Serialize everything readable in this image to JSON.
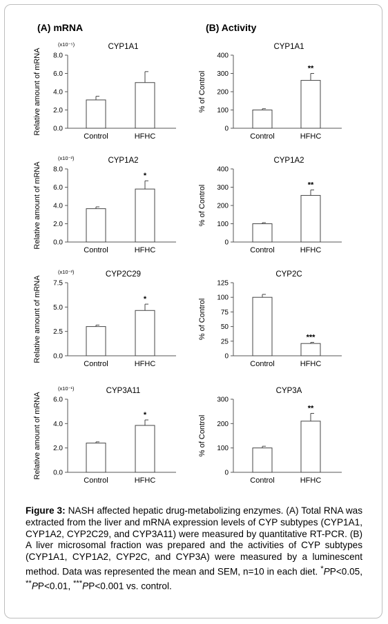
{
  "columns": {
    "a_label": "(A) mRNA",
    "b_label": "(B) Activity"
  },
  "chart_data": [
    {
      "type": "bar",
      "panel": "A",
      "title": "CYP1A1",
      "categories": [
        "Control",
        "HFHC"
      ],
      "values": [
        3.1,
        5.0
      ],
      "errors": [
        0.4,
        1.2
      ],
      "ylabel": "Relative amount of mRNA",
      "multiplier": "(x10⁻⁵)",
      "ylim": [
        0,
        8
      ],
      "yticks": [
        "0.0",
        "2.0",
        "4.0",
        "6.0",
        "8.0"
      ],
      "significance": [
        "",
        ""
      ]
    },
    {
      "type": "bar",
      "panel": "A",
      "title": "CYP1A2",
      "categories": [
        "Control",
        "HFHC"
      ],
      "values": [
        3.65,
        5.8
      ],
      "errors": [
        0.2,
        0.9
      ],
      "ylabel": "Relative amount of mRNA",
      "multiplier": "(x10⁻²)",
      "ylim": [
        0,
        8
      ],
      "yticks": [
        "0.0",
        "2.0",
        "4.0",
        "6.0",
        "8.0"
      ],
      "significance": [
        "",
        "*"
      ]
    },
    {
      "type": "bar",
      "panel": "A",
      "title": "CYP2C29",
      "categories": [
        "Control",
        "HFHC"
      ],
      "values": [
        3.0,
        4.65
      ],
      "errors": [
        0.15,
        0.65
      ],
      "ylabel": "Relative amount of mRNA",
      "multiplier": "(x10⁻²)",
      "ylim": [
        0,
        7.5
      ],
      "yticks": [
        "0.0",
        "2.5",
        "5.0",
        "7.5"
      ],
      "significance": [
        "",
        "*"
      ]
    },
    {
      "type": "bar",
      "panel": "A",
      "title": "CYP3A11",
      "categories": [
        "Control",
        "HFHC"
      ],
      "values": [
        2.4,
        3.85
      ],
      "errors": [
        0.1,
        0.45
      ],
      "ylabel": "Relative amount of mRNA",
      "multiplier": "(x10⁻¹)",
      "ylim": [
        0,
        6
      ],
      "yticks": [
        "0.0",
        "2.0",
        "4.0",
        "6.0"
      ],
      "significance": [
        "",
        "*"
      ]
    },
    {
      "type": "bar",
      "panel": "B",
      "title": "CYP1A1",
      "categories": [
        "Control",
        "HFHC"
      ],
      "values": [
        100,
        262
      ],
      "errors": [
        7,
        38
      ],
      "ylabel": "% of Control",
      "multiplier": "",
      "ylim": [
        0,
        400
      ],
      "yticks": [
        "0",
        "100",
        "200",
        "300",
        "400"
      ],
      "significance": [
        "",
        "**"
      ]
    },
    {
      "type": "bar",
      "panel": "B",
      "title": "CYP1A2",
      "categories": [
        "Control",
        "HFHC"
      ],
      "values": [
        100,
        255
      ],
      "errors": [
        6,
        30
      ],
      "ylabel": "% of Control",
      "multiplier": "",
      "ylim": [
        0,
        400
      ],
      "yticks": [
        "0",
        "100",
        "200",
        "300",
        "400"
      ],
      "significance": [
        "",
        "**"
      ]
    },
    {
      "type": "bar",
      "panel": "B",
      "title": "CYP2C",
      "categories": [
        "Control",
        "HFHC"
      ],
      "values": [
        100,
        21
      ],
      "errors": [
        5,
        2
      ],
      "ylabel": "% of Control",
      "multiplier": "",
      "ylim": [
        0,
        125
      ],
      "yticks": [
        "0",
        "25",
        "50",
        "75",
        "100",
        "125"
      ],
      "significance": [
        "",
        "***"
      ]
    },
    {
      "type": "bar",
      "panel": "B",
      "title": "CYP3A",
      "categories": [
        "Control",
        "HFHC"
      ],
      "values": [
        100,
        210
      ],
      "errors": [
        7,
        32
      ],
      "ylabel": "% of Control",
      "multiplier": "",
      "ylim": [
        0,
        300
      ],
      "yticks": [
        "0",
        "100",
        "200",
        "300"
      ],
      "significance": [
        "",
        "**"
      ]
    }
  ],
  "caption": {
    "label": "Figure 3:",
    "text": " NASH affected hepatic drug-metabolizing enzymes. (A) Total RNA was extracted from the liver and mRNA expression levels of CYP subtypes (CYP1A1, CYP1A2, CYP2C29, and CYP3A11) were measured by quantitative RT-PCR. (B) A liver microsomal fraction was prepared and the activities of CYP subtypes (CYP1A1, CYP1A2, CYP2C, and CYP3A) were measured by a luminescent method. Data was represented the mean and SEM, n=10 in each diet. ",
    "sig1_mark": "*",
    "sig1_text": "P<0.05, ",
    "sig2_mark": "**",
    "sig2_text": "P<0.01, ",
    "sig3_mark": "***",
    "sig3_text": "P<0.001 vs. control."
  }
}
